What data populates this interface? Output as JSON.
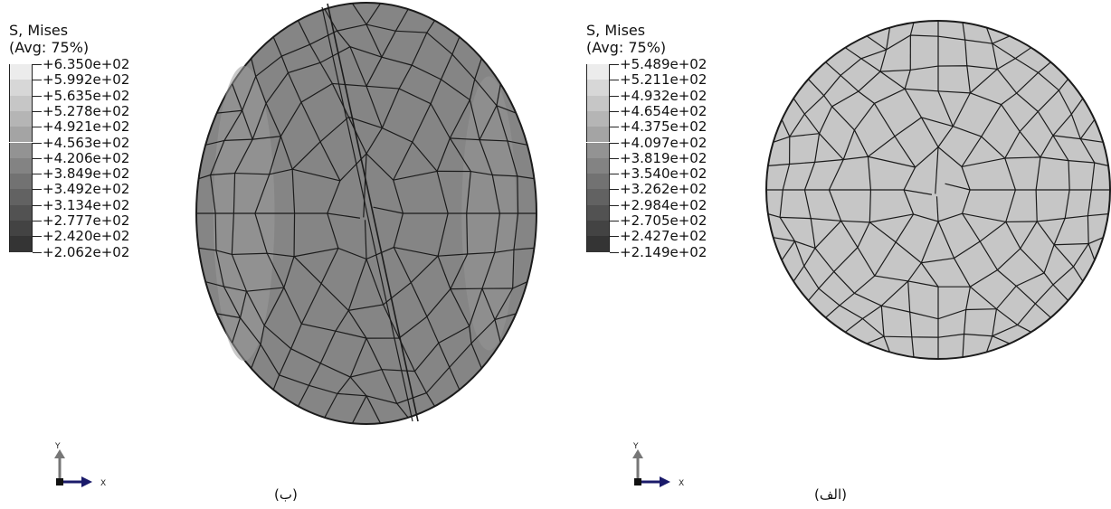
{
  "colors": {
    "mesh_line": "#1b1b1b",
    "left_part_fill": "#858585",
    "left_part_light": "#9a9a9a",
    "right_part_fill": "#c6c6c6",
    "scale": [
      "#ececec",
      "#d7d7d7",
      "#c6c6c6",
      "#b5b5b5",
      "#a4a4a4",
      "#939393",
      "#838383",
      "#727272",
      "#626262",
      "#525252",
      "#434343",
      "#343434"
    ]
  },
  "panels": {
    "left": {
      "caption": "(ب)",
      "legend_title_1": "S, Mises",
      "legend_title_2": "(Avg: 75%)",
      "legend_values": [
        "+6.350e+02",
        "+5.992e+02",
        "+5.635e+02",
        "+5.278e+02",
        "+4.921e+02",
        "+4.563e+02",
        "+4.206e+02",
        "+3.849e+02",
        "+3.492e+02",
        "+3.134e+02",
        "+2.777e+02",
        "+2.420e+02",
        "+2.062e+02"
      ],
      "axis_y": "Y",
      "axis_x": "X"
    },
    "right": {
      "caption": "(الف)",
      "legend_title_1": "S, Mises",
      "legend_title_2": "(Avg: 75%)",
      "legend_values": [
        "+5.489e+02",
        "+5.211e+02",
        "+4.932e+02",
        "+4.654e+02",
        "+4.375e+02",
        "+4.097e+02",
        "+3.819e+02",
        "+3.540e+02",
        "+3.262e+02",
        "+2.984e+02",
        "+2.705e+02",
        "+2.427e+02",
        "+2.149e+02"
      ],
      "axis_y": "Y",
      "axis_x": "X"
    }
  }
}
